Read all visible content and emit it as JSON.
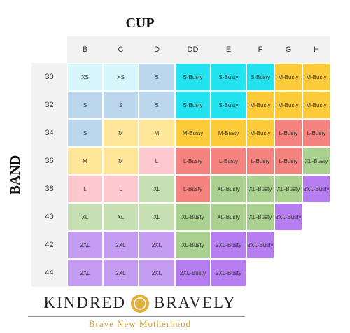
{
  "title": "CUP",
  "band_label": "BAND",
  "table": {
    "columns": [
      "B",
      "C",
      "D",
      "DD",
      "E",
      "F",
      "G",
      "H"
    ],
    "rows": [
      {
        "band": "30",
        "cells": [
          {
            "label": "XS",
            "color": "#d6f6fb"
          },
          {
            "label": "XS",
            "color": "#d6f6fb"
          },
          {
            "label": "S",
            "color": "#bdd7ee"
          },
          {
            "label": "S-Busty",
            "color": "#22e3ef"
          },
          {
            "label": "S-Busty",
            "color": "#22e3ef"
          },
          {
            "label": "S-Busty",
            "color": "#22e3ef"
          },
          {
            "label": "M-Busty",
            "color": "#fdcb3a"
          },
          {
            "label": "M-Busty",
            "color": "#fdcb3a"
          }
        ]
      },
      {
        "band": "32",
        "cells": [
          {
            "label": "S",
            "color": "#bdd7ee"
          },
          {
            "label": "S",
            "color": "#bdd7ee"
          },
          {
            "label": "S",
            "color": "#bdd7ee"
          },
          {
            "label": "S-Busty",
            "color": "#22e3ef"
          },
          {
            "label": "S-Busty",
            "color": "#22e3ef"
          },
          {
            "label": "M-Busty",
            "color": "#fdcb3a"
          },
          {
            "label": "M-Busty",
            "color": "#fdcb3a"
          },
          {
            "label": "M-Busty",
            "color": "#fdcb3a"
          }
        ]
      },
      {
        "band": "34",
        "cells": [
          {
            "label": "S",
            "color": "#bdd7ee"
          },
          {
            "label": "M",
            "color": "#ffe699"
          },
          {
            "label": "M",
            "color": "#ffe699"
          },
          {
            "label": "M-Busty",
            "color": "#fdcb3a"
          },
          {
            "label": "M-Busty",
            "color": "#fdcb3a"
          },
          {
            "label": "M-Busty",
            "color": "#fdcb3a"
          },
          {
            "label": "L-Busty",
            "color": "#f4827f"
          },
          {
            "label": "L-Busty",
            "color": "#f4827f"
          }
        ]
      },
      {
        "band": "36",
        "cells": [
          {
            "label": "M",
            "color": "#ffe699"
          },
          {
            "label": "M",
            "color": "#ffe699"
          },
          {
            "label": "L",
            "color": "#ffc7ce"
          },
          {
            "label": "L-Busty",
            "color": "#f4827f"
          },
          {
            "label": "L-Busty",
            "color": "#f4827f"
          },
          {
            "label": "L-Busty",
            "color": "#f4827f"
          },
          {
            "label": "L-Busty",
            "color": "#f4827f"
          },
          {
            "label": "XL-Busty",
            "color": "#a9d08e"
          }
        ]
      },
      {
        "band": "38",
        "cells": [
          {
            "label": "L",
            "color": "#ffc7ce"
          },
          {
            "label": "L",
            "color": "#ffc7ce"
          },
          {
            "label": "XL",
            "color": "#c6e0b4"
          },
          {
            "label": "L-Busty",
            "color": "#f4827f"
          },
          {
            "label": "XL-Busty",
            "color": "#a9d08e"
          },
          {
            "label": "XL-Busty",
            "color": "#a9d08e"
          },
          {
            "label": "XL-Busty",
            "color": "#a9d08e"
          },
          {
            "label": "2XL-Busty",
            "color": "#b57df0"
          }
        ]
      },
      {
        "band": "40",
        "cells": [
          {
            "label": "XL",
            "color": "#c6e0b4"
          },
          {
            "label": "XL",
            "color": "#c6e0b4"
          },
          {
            "label": "XL",
            "color": "#c6e0b4"
          },
          {
            "label": "XL-Busty",
            "color": "#a9d08e"
          },
          {
            "label": "XL-Busty",
            "color": "#a9d08e"
          },
          {
            "label": "XL-Busty",
            "color": "#a9d08e"
          },
          {
            "label": "2XL-Busty",
            "color": "#b57df0"
          }
        ]
      },
      {
        "band": "42",
        "cells": [
          {
            "label": "2XL",
            "color": "#c39cf2"
          },
          {
            "label": "2XL",
            "color": "#c39cf2"
          },
          {
            "label": "2XL",
            "color": "#c39cf2"
          },
          {
            "label": "XL-Busty",
            "color": "#a9d08e"
          },
          {
            "label": "2XL-Busty",
            "color": "#b57df0"
          },
          {
            "label": "2XL-Busty",
            "color": "#b57df0"
          }
        ]
      },
      {
        "band": "44",
        "cells": [
          {
            "label": "2XL",
            "color": "#c39cf2"
          },
          {
            "label": "2XL",
            "color": "#c39cf2"
          },
          {
            "label": "2XL",
            "color": "#c39cf2"
          },
          {
            "label": "2XL-Busty",
            "color": "#b57df0"
          },
          {
            "label": "2XL-Busty",
            "color": "#b57df0"
          }
        ]
      }
    ]
  },
  "brand": {
    "left": "KINDRED",
    "right": "BRAVELY",
    "tagline": "Brave New Motherhood"
  }
}
